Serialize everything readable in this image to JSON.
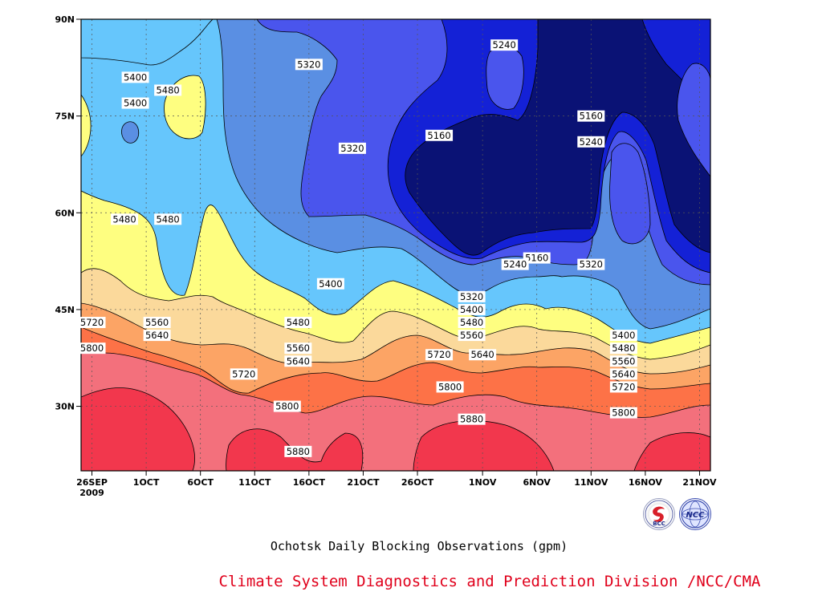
{
  "chart_data": {
    "type": "heatmap",
    "title": "Ochotsk Daily Blocking Observations (gpm)",
    "xlabel": "",
    "ylabel": "",
    "x_ticks": [
      "26SEP\n2009",
      "1OCT",
      "6OCT",
      "11OCT",
      "16OCT",
      "21OCT",
      "26OCT",
      "1NOV",
      "6NOV",
      "11NOV",
      "16NOV",
      "21NOV"
    ],
    "y_ticks": [
      "30N",
      "45N",
      "60N",
      "75N",
      "90N"
    ],
    "y_tick_values": [
      30,
      45,
      60,
      75,
      90
    ],
    "ylim": [
      20,
      90
    ],
    "xlim": [
      "2009-09-25",
      "2009-11-22"
    ],
    "grid": true,
    "contour_levels": [
      5160,
      5240,
      5320,
      5400,
      5480,
      5560,
      5640,
      5720,
      5800,
      5880
    ],
    "colors": {
      "lt5160": "#0a1275",
      "5160": "#1421d6",
      "5240": "#4a55ed",
      "5320": "#5a8fe3",
      "5400": "#66c6fc",
      "5480": "#fefe80",
      "5560": "#fbd99b",
      "5640": "#fca465",
      "5720": "#fd7247",
      "5800": "#f3707c",
      "5880": "#f2374d"
    },
    "contour_labels": [
      {
        "text": "5400",
        "x": "2009-09-30",
        "y": 81
      },
      {
        "text": "5400",
        "x": "2009-09-30",
        "y": 77
      },
      {
        "text": "5480",
        "x": "2009-10-03",
        "y": 79
      },
      {
        "text": "5320",
        "x": "2009-10-16",
        "y": 83
      },
      {
        "text": "5240",
        "x": "2009-11-03",
        "y": 86
      },
      {
        "text": "5160",
        "x": "2009-11-11",
        "y": 75
      },
      {
        "text": "5240",
        "x": "2009-11-11",
        "y": 71
      },
      {
        "text": "5160",
        "x": "2009-10-28",
        "y": 72
      },
      {
        "text": "5320",
        "x": "2009-10-20",
        "y": 70
      },
      {
        "text": "5480",
        "x": "2009-09-29",
        "y": 59
      },
      {
        "text": "5480",
        "x": "2009-10-03",
        "y": 59
      },
      {
        "text": "5160",
        "x": "2009-11-06",
        "y": 53
      },
      {
        "text": "5240",
        "x": "2009-11-04",
        "y": 52
      },
      {
        "text": "5320",
        "x": "2009-11-11",
        "y": 52
      },
      {
        "text": "5400",
        "x": "2009-10-18",
        "y": 49
      },
      {
        "text": "5320",
        "x": "2009-10-31",
        "y": 47
      },
      {
        "text": "5400",
        "x": "2009-10-31",
        "y": 45
      },
      {
        "text": "5480",
        "x": "2009-10-31",
        "y": 43
      },
      {
        "text": "5560",
        "x": "2009-10-31",
        "y": 41
      },
      {
        "text": "5640",
        "x": "2009-11-01",
        "y": 38
      },
      {
        "text": "5720",
        "x": "2009-09-26",
        "y": 43
      },
      {
        "text": "5800",
        "x": "2009-09-26",
        "y": 39
      },
      {
        "text": "5560",
        "x": "2009-10-02",
        "y": 43
      },
      {
        "text": "5640",
        "x": "2009-10-02",
        "y": 41
      },
      {
        "text": "5480",
        "x": "2009-10-15",
        "y": 43
      },
      {
        "text": "5560",
        "x": "2009-10-15",
        "y": 39
      },
      {
        "text": "5640",
        "x": "2009-10-15",
        "y": 37
      },
      {
        "text": "5720",
        "x": "2009-10-10",
        "y": 35
      },
      {
        "text": "5720",
        "x": "2009-10-28",
        "y": 38
      },
      {
        "text": "5800",
        "x": "2009-10-29",
        "y": 33
      },
      {
        "text": "5800",
        "x": "2009-10-14",
        "y": 30
      },
      {
        "text": "5880",
        "x": "2009-10-31",
        "y": 28
      },
      {
        "text": "5880",
        "x": "2009-10-15",
        "y": 23
      },
      {
        "text": "5400",
        "x": "2009-11-14",
        "y": 41
      },
      {
        "text": "5480",
        "x": "2009-11-14",
        "y": 39
      },
      {
        "text": "5560",
        "x": "2009-11-14",
        "y": 37
      },
      {
        "text": "5640",
        "x": "2009-11-14",
        "y": 35
      },
      {
        "text": "5720",
        "x": "2009-11-14",
        "y": 33
      },
      {
        "text": "5800",
        "x": "2009-11-14",
        "y": 29
      }
    ]
  },
  "subtitle": "Ochotsk Daily Blocking Observations (gpm)",
  "credit": "Climate System Diagnostics and Prediction Division /NCC/CMA",
  "logos": [
    {
      "name": "bcc-logo",
      "text": "BCC"
    },
    {
      "name": "ncc-logo",
      "text": "NCC"
    }
  ]
}
